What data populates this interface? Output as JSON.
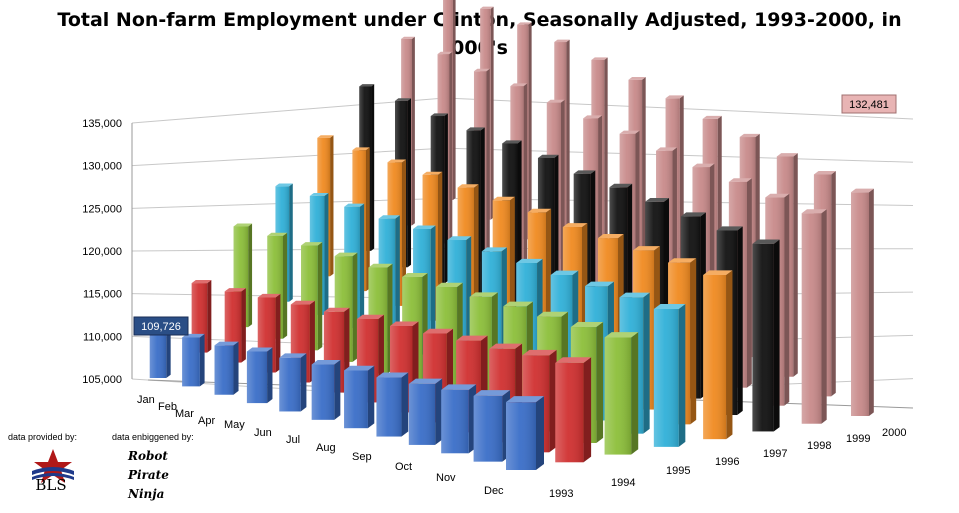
{
  "chart_data": {
    "type": "bar",
    "style": "3d-column",
    "title": "Total Non-farm Employment under Clinton, Seasonally Adjusted, 1993-2000,  in 000's",
    "title_lines": [
      "Total Non-farm Employment under Clinton, Seasonally Adjusted, 1993-2000,  in",
      "000's"
    ],
    "categories": [
      "Jan",
      "Feb",
      "Mar",
      "Apr",
      "May",
      "Jun",
      "Jul",
      "Aug",
      "Sep",
      "Oct",
      "Nov",
      "Dec"
    ],
    "yticks": [
      "105,000",
      "110,000",
      "115,000",
      "120,000",
      "125,000",
      "130,000",
      "135,000"
    ],
    "ylim": [
      105000,
      135000
    ],
    "series": [
      {
        "name": "1993",
        "color": "#3a6ec8",
        "values": [
          109726,
          109791,
          109839,
          110108,
          110360,
          110542,
          110823,
          110978,
          111213,
          111497,
          111768,
          112012
        ]
      },
      {
        "name": "1994",
        "color": "#d03030",
        "values": [
          112285,
          112481,
          112945,
          113291,
          113621,
          113948,
          114299,
          114593,
          114931,
          115142,
          115550,
          115838
        ]
      },
      {
        "name": "1995",
        "color": "#8cbf3a",
        "values": [
          116118,
          116380,
          116606,
          116722,
          116750,
          116997,
          117195,
          117408,
          117654,
          117804,
          117945,
          118081
        ]
      },
      {
        "name": "1996",
        "color": "#30b0d8",
        "values": [
          118040,
          118471,
          118760,
          118914,
          119257,
          119522,
          119754,
          119934,
          120083,
          120329,
          120572,
          120759
        ]
      },
      {
        "name": "1997",
        "color": "#f08a20",
        "values": [
          121022,
          121325,
          121643,
          121934,
          122180,
          122439,
          122773,
          122794,
          123251,
          123568,
          123871,
          124176
        ]
      },
      {
        "name": "1998",
        "color": "#111111",
        "values": [
          124440,
          124693,
          124845,
          125114,
          125518,
          125747,
          125834,
          126186,
          126425,
          126661,
          126946,
          127324
        ]
      },
      {
        "name": "1999",
        "color": "#c88a8a",
        "values": [
          127467,
          127813,
          127925,
          128329,
          128522,
          128808,
          129135,
          129268,
          129479,
          129888,
          130183,
          130479
        ]
      },
      {
        "name": "2000",
        "color": "#c88a8a",
        "values": [
          130728,
          130849,
          131321,
          131605,
          131820,
          131806,
          131947,
          131823,
          132010,
          132035,
          132249,
          132481
        ]
      }
    ],
    "value_labels": [
      "109,726",
      "132,481"
    ],
    "grid": true
  },
  "footer": {
    "provided_by": "data provided by:",
    "enbiggened_by": "data enbiggened by:",
    "rpn": [
      "Robot",
      "Pirate",
      "Ninja"
    ],
    "logo_text": "BLS"
  }
}
